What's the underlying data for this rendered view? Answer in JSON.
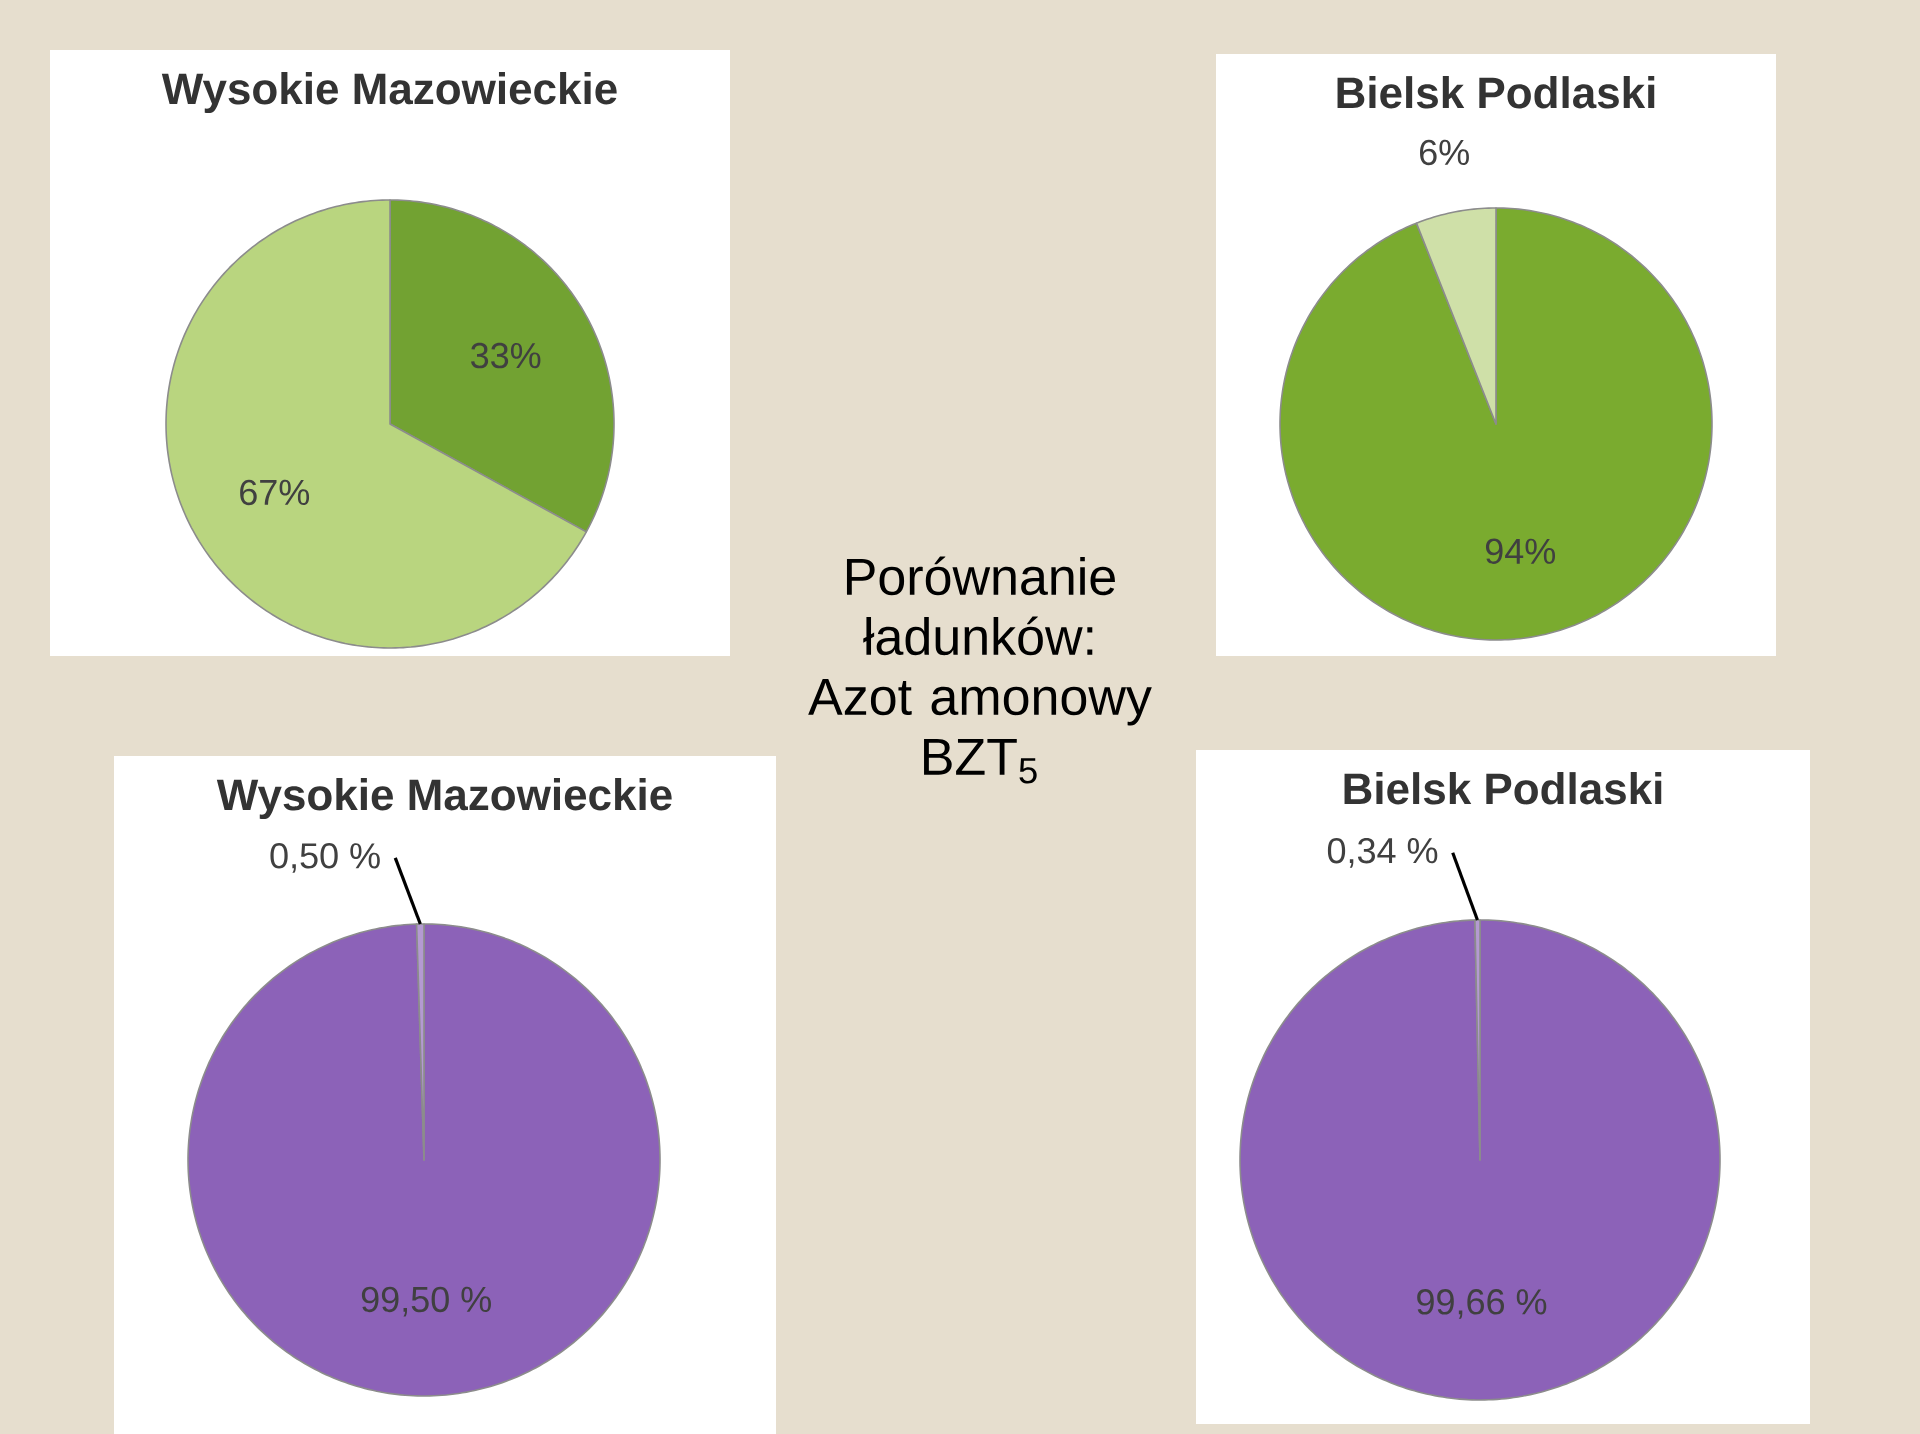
{
  "chart_data": [
    {
      "type": "pie",
      "title": "Wysokie Mazowieckie",
      "categories": [
        null,
        null
      ],
      "values": [
        33,
        67
      ],
      "colors": [
        "#72a232",
        "#b9d57f"
      ],
      "value_labels": [
        "33%",
        "67%"
      ]
    },
    {
      "type": "pie",
      "title": "Bielsk Podlaski",
      "categories": [
        null,
        null
      ],
      "values": [
        94,
        6
      ],
      "colors": [
        "#7aab2f",
        "#cfe0a8"
      ],
      "value_labels": [
        "94%",
        "6%"
      ]
    },
    {
      "type": "pie",
      "title": "Wysokie Mazowieckie",
      "categories": [
        null,
        null
      ],
      "values": [
        99.5,
        0.5
      ],
      "colors": [
        "#8c62b8",
        "#b49ad2"
      ],
      "value_labels": [
        "99,50 %",
        "0,50 %"
      ]
    },
    {
      "type": "pie",
      "title": "Bielsk Podlaski",
      "categories": [
        null,
        null
      ],
      "values": [
        99.66,
        0.34
      ],
      "colors": [
        "#8c62b8",
        "#b49ad2"
      ],
      "value_labels": [
        "99,66 %",
        "0,34 %"
      ]
    },
    {
      "type": "other",
      "title": "Porównanie ładunków: Azot amonowy BZT$_{5}$"
    }
  ]
}
